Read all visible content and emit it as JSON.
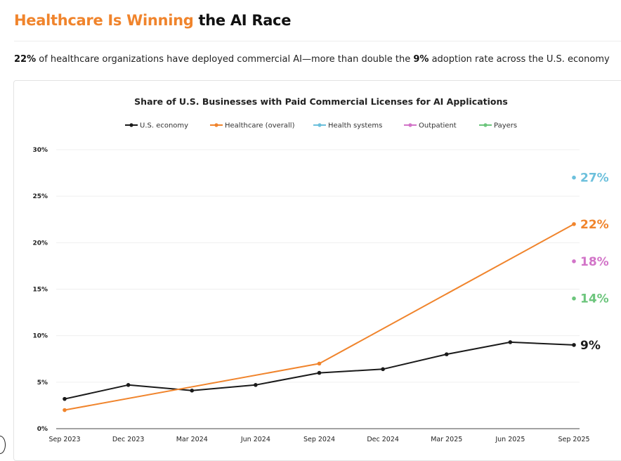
{
  "header": {
    "title_accent": "Healthcare Is Winning",
    "title_rest": "the AI Race",
    "subtitle_pct1": "22%",
    "subtitle_text1": "of healthcare organizations have deployed commercial AI—more than double the",
    "subtitle_pct2": "9%",
    "subtitle_text2": "adoption rate across the U.S. economy"
  },
  "colors": {
    "economy": "#1a1a1a",
    "healthcare": "#f0842c",
    "health_systems": "#6cc0dc",
    "outpatient": "#d274c8",
    "payers": "#6cc57c",
    "accent": "#f0842c"
  },
  "chart_data": {
    "type": "line",
    "title": "Share of U.S. Businesses with Paid Commercial Licenses for AI Applications",
    "xlabel": "",
    "ylabel": "",
    "ylim": [
      0,
      30
    ],
    "yticks": [
      0,
      5,
      10,
      15,
      20,
      25,
      30
    ],
    "ytick_labels": [
      "0%",
      "5%",
      "10%",
      "15%",
      "20%",
      "25%",
      "30%"
    ],
    "categories": [
      "Sep 2023",
      "Dec 2023",
      "Mar 2024",
      "Jun 2024",
      "Sep 2024",
      "Dec 2024",
      "Mar 2025",
      "Jun 2025",
      "Sep 2025"
    ],
    "legend_position": "top-center",
    "series": [
      {
        "key": "economy",
        "name": "U.S. economy",
        "color": "#1a1a1a",
        "points": [
          [
            0,
            3.2
          ],
          [
            1,
            4.7
          ],
          [
            2,
            4.1
          ],
          [
            3,
            4.7
          ],
          [
            4,
            6.0
          ],
          [
            5,
            6.4
          ],
          [
            6,
            8.0
          ],
          [
            7,
            9.3
          ],
          [
            8,
            9.0
          ]
        ],
        "end_label": "9%"
      },
      {
        "key": "healthcare",
        "name": "Healthcare (overall)",
        "color": "#f0842c",
        "points": [
          [
            0,
            2.0
          ],
          [
            4,
            7.0
          ],
          [
            8,
            22.0
          ]
        ],
        "end_label": "22%"
      },
      {
        "key": "health_systems",
        "name": "Health systems",
        "color": "#6cc0dc",
        "points": [
          [
            8,
            27.0
          ]
        ],
        "end_label": "27%"
      },
      {
        "key": "outpatient",
        "name": "Outpatient",
        "color": "#d274c8",
        "points": [
          [
            8,
            18.0
          ]
        ],
        "end_label": "18%"
      },
      {
        "key": "payers",
        "name": "Payers",
        "color": "#6cc57c",
        "points": [
          [
            8,
            14.0
          ]
        ],
        "end_label": "14%"
      }
    ]
  }
}
